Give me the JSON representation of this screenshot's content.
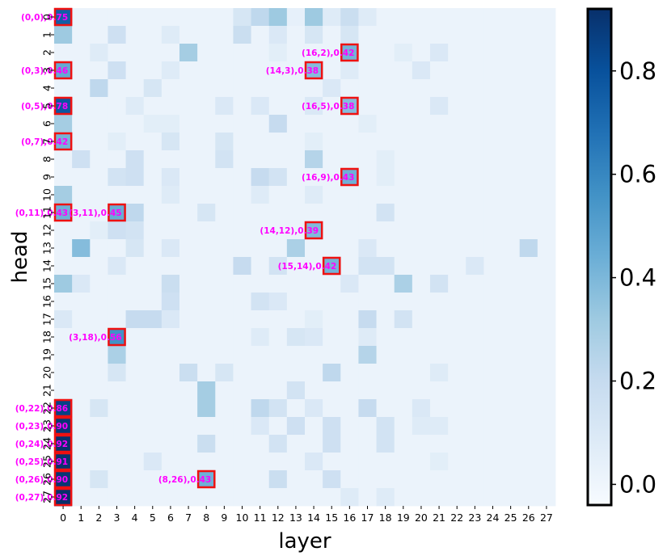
{
  "chart_data": {
    "type": "heatmap",
    "title": "",
    "xlabel": "layer",
    "ylabel": "head",
    "x_ticks": [
      "0",
      "1",
      "2",
      "3",
      "4",
      "5",
      "6",
      "7",
      "8",
      "9",
      "10",
      "11",
      "12",
      "13",
      "14",
      "15",
      "16",
      "17",
      "18",
      "19",
      "20",
      "21",
      "22",
      "23",
      "24",
      "25",
      "26",
      "27"
    ],
    "y_ticks": [
      "0",
      "1",
      "2",
      "3",
      "4",
      "5",
      "6",
      "7",
      "8",
      "9",
      "10",
      "11",
      "12",
      "13",
      "14",
      "15",
      "16",
      "17",
      "18",
      "19",
      "20",
      "21",
      "22",
      "23",
      "24",
      "25",
      "26",
      "27"
    ],
    "colorbar": {
      "min": -0.04,
      "max": 0.92,
      "ticks": [
        "0.0",
        "0.2",
        "0.4",
        "0.6",
        "0.8"
      ],
      "tick_values": [
        0.0,
        0.2,
        0.4,
        0.6,
        0.8
      ],
      "colormap": "Blues"
    },
    "background_value": 0.02,
    "cells": [
      [
        0,
        0,
        0.75
      ],
      [
        10,
        0,
        0.12
      ],
      [
        11,
        0,
        0.22
      ],
      [
        12,
        0,
        0.32
      ],
      [
        13,
        0,
        0.04
      ],
      [
        14,
        0,
        0.32
      ],
      [
        15,
        0,
        0.08
      ],
      [
        16,
        0,
        0.18
      ],
      [
        17,
        0,
        0.08
      ],
      [
        0,
        1,
        0.32
      ],
      [
        3,
        1,
        0.16
      ],
      [
        6,
        1,
        0.08
      ],
      [
        10,
        1,
        0.18
      ],
      [
        12,
        1,
        0.1
      ],
      [
        14,
        1,
        0.12
      ],
      [
        16,
        1,
        0.12
      ],
      [
        2,
        2,
        0.08
      ],
      [
        7,
        2,
        0.3
      ],
      [
        12,
        2,
        0.06
      ],
      [
        16,
        2,
        0.42
      ],
      [
        19,
        2,
        0.06
      ],
      [
        21,
        2,
        0.1
      ],
      [
        0,
        3,
        0.46
      ],
      [
        3,
        3,
        0.16
      ],
      [
        6,
        3,
        0.08
      ],
      [
        14,
        3,
        0.38
      ],
      [
        16,
        3,
        0.08
      ],
      [
        20,
        3,
        0.1
      ],
      [
        2,
        4,
        0.22
      ],
      [
        5,
        4,
        0.12
      ],
      [
        15,
        4,
        0.1
      ],
      [
        0,
        5,
        0.78
      ],
      [
        4,
        5,
        0.08
      ],
      [
        9,
        5,
        0.1
      ],
      [
        11,
        5,
        0.1
      ],
      [
        14,
        5,
        0.1
      ],
      [
        16,
        5,
        0.38
      ],
      [
        21,
        5,
        0.1
      ],
      [
        0,
        6,
        0.3
      ],
      [
        5,
        6,
        0.06
      ],
      [
        6,
        6,
        0.06
      ],
      [
        12,
        6,
        0.2
      ],
      [
        17,
        6,
        0.06
      ],
      [
        0,
        7,
        0.42
      ],
      [
        3,
        7,
        0.06
      ],
      [
        6,
        7,
        0.12
      ],
      [
        9,
        7,
        0.12
      ],
      [
        14,
        7,
        0.06
      ],
      [
        1,
        8,
        0.16
      ],
      [
        4,
        8,
        0.16
      ],
      [
        9,
        8,
        0.14
      ],
      [
        14,
        8,
        0.25
      ],
      [
        18,
        8,
        0.06
      ],
      [
        3,
        9,
        0.14
      ],
      [
        4,
        9,
        0.16
      ],
      [
        6,
        9,
        0.1
      ],
      [
        11,
        9,
        0.2
      ],
      [
        12,
        9,
        0.14
      ],
      [
        16,
        9,
        0.43
      ],
      [
        18,
        9,
        0.06
      ],
      [
        0,
        10,
        0.3
      ],
      [
        6,
        10,
        0.08
      ],
      [
        11,
        10,
        0.08
      ],
      [
        14,
        10,
        0.08
      ],
      [
        0,
        11,
        0.43
      ],
      [
        3,
        11,
        0.45
      ],
      [
        4,
        11,
        0.22
      ],
      [
        8,
        11,
        0.12
      ],
      [
        18,
        11,
        0.14
      ],
      [
        2,
        12,
        0.06
      ],
      [
        3,
        12,
        0.16
      ],
      [
        4,
        12,
        0.14
      ],
      [
        14,
        12,
        0.39
      ],
      [
        1,
        13,
        0.38
      ],
      [
        4,
        13,
        0.12
      ],
      [
        6,
        13,
        0.1
      ],
      [
        13,
        13,
        0.28
      ],
      [
        17,
        13,
        0.1
      ],
      [
        26,
        13,
        0.22
      ],
      [
        3,
        14,
        0.1
      ],
      [
        10,
        14,
        0.2
      ],
      [
        12,
        14,
        0.14
      ],
      [
        15,
        14,
        0.42
      ],
      [
        17,
        14,
        0.14
      ],
      [
        18,
        14,
        0.14
      ],
      [
        23,
        14,
        0.1
      ],
      [
        0,
        15,
        0.32
      ],
      [
        1,
        15,
        0.1
      ],
      [
        6,
        15,
        0.18
      ],
      [
        16,
        15,
        0.1
      ],
      [
        19,
        15,
        0.28
      ],
      [
        21,
        15,
        0.14
      ],
      [
        6,
        16,
        0.16
      ],
      [
        11,
        16,
        0.14
      ],
      [
        12,
        16,
        0.1
      ],
      [
        0,
        17,
        0.1
      ],
      [
        4,
        17,
        0.2
      ],
      [
        5,
        17,
        0.2
      ],
      [
        6,
        17,
        0.1
      ],
      [
        14,
        17,
        0.06
      ],
      [
        17,
        17,
        0.2
      ],
      [
        19,
        17,
        0.14
      ],
      [
        3,
        18,
        0.56
      ],
      [
        11,
        18,
        0.08
      ],
      [
        13,
        18,
        0.12
      ],
      [
        14,
        18,
        0.1
      ],
      [
        17,
        18,
        0.08
      ],
      [
        3,
        19,
        0.28
      ],
      [
        17,
        19,
        0.25
      ],
      [
        3,
        20,
        0.12
      ],
      [
        7,
        20,
        0.18
      ],
      [
        9,
        20,
        0.12
      ],
      [
        15,
        20,
        0.22
      ],
      [
        21,
        20,
        0.08
      ],
      [
        8,
        21,
        0.3
      ],
      [
        13,
        21,
        0.14
      ],
      [
        0,
        22,
        0.86
      ],
      [
        2,
        22,
        0.12
      ],
      [
        8,
        22,
        0.3
      ],
      [
        11,
        22,
        0.22
      ],
      [
        12,
        22,
        0.14
      ],
      [
        14,
        22,
        0.1
      ],
      [
        17,
        22,
        0.2
      ],
      [
        20,
        22,
        0.1
      ],
      [
        0,
        23,
        0.9
      ],
      [
        11,
        23,
        0.1
      ],
      [
        13,
        23,
        0.16
      ],
      [
        15,
        23,
        0.16
      ],
      [
        18,
        23,
        0.14
      ],
      [
        20,
        23,
        0.08
      ],
      [
        21,
        23,
        0.08
      ],
      [
        0,
        24,
        0.92
      ],
      [
        8,
        24,
        0.18
      ],
      [
        12,
        24,
        0.14
      ],
      [
        15,
        24,
        0.16
      ],
      [
        18,
        24,
        0.14
      ],
      [
        0,
        25,
        0.91
      ],
      [
        5,
        25,
        0.1
      ],
      [
        14,
        25,
        0.1
      ],
      [
        21,
        25,
        0.06
      ],
      [
        0,
        26,
        0.9
      ],
      [
        2,
        26,
        0.12
      ],
      [
        8,
        26,
        0.43
      ],
      [
        12,
        26,
        0.18
      ],
      [
        15,
        26,
        0.16
      ],
      [
        0,
        27,
        0.92
      ],
      [
        16,
        27,
        0.08
      ],
      [
        18,
        27,
        0.08
      ]
    ],
    "annotations": [
      {
        "x": 0,
        "y": 0,
        "label": "(0,0),0.75"
      },
      {
        "x": 16,
        "y": 2,
        "label": "(16,2),0.42"
      },
      {
        "x": 0,
        "y": 3,
        "label": "(0,3),0.46"
      },
      {
        "x": 14,
        "y": 3,
        "label": "(14,3),0.38"
      },
      {
        "x": 0,
        "y": 5,
        "label": "(0,5),0.78"
      },
      {
        "x": 16,
        "y": 5,
        "label": "(16,5),0.38"
      },
      {
        "x": 0,
        "y": 7,
        "label": "(0,7),0.42"
      },
      {
        "x": 16,
        "y": 9,
        "label": "(16,9),0.43"
      },
      {
        "x": 0,
        "y": 11,
        "label": "(0,11),0.43"
      },
      {
        "x": 3,
        "y": 11,
        "label": "(3,11),0.45"
      },
      {
        "x": 14,
        "y": 12,
        "label": "(14,12),0.39"
      },
      {
        "x": 15,
        "y": 14,
        "label": "(15,14),0.42"
      },
      {
        "x": 3,
        "y": 18,
        "label": "(3,18),0.56"
      },
      {
        "x": 0,
        "y": 22,
        "label": "(0,22),0.86"
      },
      {
        "x": 0,
        "y": 23,
        "label": "(0,23),0.90"
      },
      {
        "x": 0,
        "y": 24,
        "label": "(0,24),0.92"
      },
      {
        "x": 0,
        "y": 25,
        "label": "(0,25),0.91"
      },
      {
        "x": 0,
        "y": 26,
        "label": "(0,26),0.90"
      },
      {
        "x": 8,
        "y": 26,
        "label": "(8,26),0.43"
      },
      {
        "x": 0,
        "y": 27,
        "label": "(0,27),0.92"
      }
    ],
    "annotation_color": "#ff00ff",
    "highlight_color": "#ee1111"
  }
}
